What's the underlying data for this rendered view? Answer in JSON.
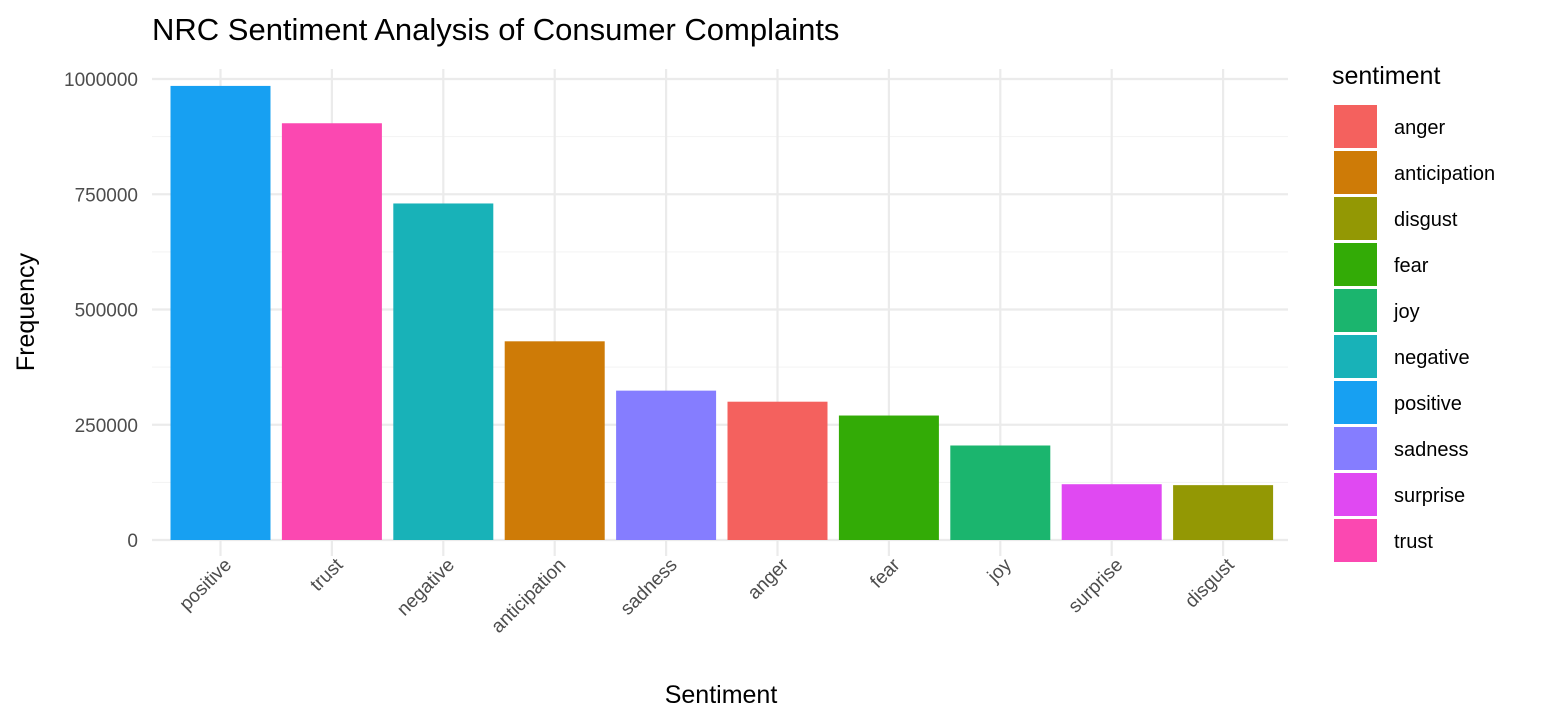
{
  "chart_data": {
    "type": "bar",
    "title": "NRC Sentiment Analysis of Consumer Complaints",
    "xlabel": "Sentiment",
    "ylabel": "Frequency",
    "categories": [
      "positive",
      "trust",
      "negative",
      "anticipation",
      "sadness",
      "anger",
      "fear",
      "joy",
      "surprise",
      "disgust"
    ],
    "values": [
      985000,
      904000,
      730000,
      431000,
      324000,
      300000,
      270000,
      205000,
      121000,
      119000
    ],
    "ylim": [
      0,
      1000000
    ],
    "yticks": [
      0,
      250000,
      500000,
      750000,
      1000000
    ],
    "ytick_labels": [
      "0",
      "250000",
      "500000",
      "750000",
      "1000000"
    ],
    "grid": true,
    "legend": {
      "title": "sentiment",
      "position": "right",
      "entries": [
        "anger",
        "anticipation",
        "disgust",
        "fear",
        "joy",
        "negative",
        "positive",
        "sadness",
        "surprise",
        "trust"
      ]
    },
    "colors": {
      "anger": "#F8766D",
      "anticipation": "#D39200",
      "disgust": "#93AA00",
      "fear": "#00BA38",
      "joy": "#00C19F",
      "negative": "#00B9E3",
      "positive": "#619CFF",
      "sadness": "#DB72FB",
      "surprise": "#FF61C3",
      "trust": "#FF61C3"
    }
  },
  "palette": {
    "anger": "#F4615E",
    "anticipation": "#CE7B07",
    "disgust": "#939804",
    "fear": "#33AB06",
    "joy": "#1BB56E",
    "negative": "#18B2B8",
    "positive": "#17A0F2",
    "sadness": "#857DFF",
    "surprise": "#E049F2",
    "trust": "#FB48B1"
  }
}
